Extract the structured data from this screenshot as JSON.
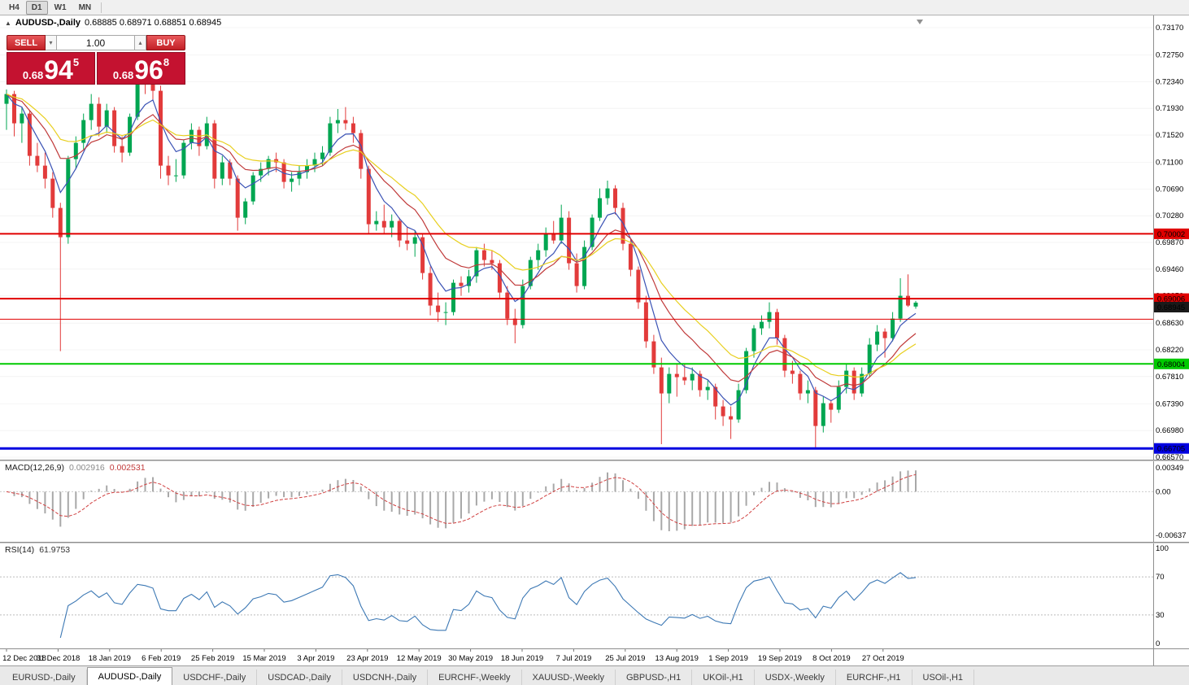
{
  "toolbar": {
    "timeframes": [
      "H4",
      "D1",
      "W1",
      "MN"
    ],
    "active": "D1"
  },
  "chart_header": {
    "collapse_icon": "▲",
    "title": "AUDUSD-,Daily",
    "ohlc": "0.68885 0.68971 0.68851 0.68945"
  },
  "one_click": {
    "sell_label": "SELL",
    "buy_label": "BUY",
    "volume": "1.00",
    "decrease_icon": "▾",
    "increase_icon": "▴",
    "sell_price": {
      "prefix": "0.68",
      "big": "94",
      "sup": "5"
    },
    "buy_price": {
      "prefix": "0.68",
      "big": "96",
      "sup": "8"
    }
  },
  "chart_data": {
    "type": "candlestick",
    "symbol": "AUDUSD-",
    "timeframe": "Daily",
    "main": {
      "price_top": 0.7317,
      "price_bottom": 0.6657,
      "y_ticks": [
        0.7317,
        0.7275,
        0.7234,
        0.7193,
        0.7152,
        0.711,
        0.7069,
        0.7028,
        0.6987,
        0.6946,
        0.6905,
        0.6863,
        0.6822,
        0.6781,
        0.6739,
        0.6698,
        0.6657
      ],
      "x_labels": [
        "12 Dec 2018",
        "31 Dec 2018",
        "18 Jan 2019",
        "6 Feb 2019",
        "25 Feb 2019",
        "15 Mar 2019",
        "3 Apr 2019",
        "23 Apr 2019",
        "12 May 2019",
        "30 May 2019",
        "18 Jun 2019",
        "7 Jul 2019",
        "25 Jul 2019",
        "13 Aug 2019",
        "1 Sep 2019",
        "19 Sep 2019",
        "8 Oct 2019",
        "27 Oct 2019"
      ],
      "up_color": "#00a651",
      "down_color": "#e23b3b",
      "ma_lines": [
        {
          "name": "fast",
          "color": "#3b53b5",
          "period": 5
        },
        {
          "name": "medium",
          "color": "#c03a3a",
          "period": 11
        },
        {
          "name": "slow",
          "color": "#e8cf1e",
          "period": 18
        }
      ],
      "h_lines": [
        {
          "price": 0.70002,
          "color": "#e00000",
          "width": 2,
          "label": "0.70002"
        },
        {
          "price": 0.69006,
          "color": "#e00000",
          "width": 2,
          "label": "0.69006"
        },
        {
          "price": 0.6869,
          "color": "#e00000",
          "width": 1,
          "label": ""
        },
        {
          "price": 0.68004,
          "color": "#00ca00",
          "width": 2,
          "label": "0.68004"
        },
        {
          "price": 0.66705,
          "color": "#0000e0",
          "width": 3,
          "label": "0.66705"
        }
      ],
      "bid": {
        "price": 0.68945,
        "label": "0.68945",
        "color": "#1a1a1a"
      },
      "candles": [
        [
          0.72,
          0.7222,
          0.716,
          0.7215
        ],
        [
          0.7215,
          0.722,
          0.715,
          0.717
        ],
        [
          0.717,
          0.7195,
          0.714,
          0.7185
        ],
        [
          0.7185,
          0.719,
          0.7105,
          0.712
        ],
        [
          0.712,
          0.714,
          0.7095,
          0.7105
        ],
        [
          0.7105,
          0.7125,
          0.707,
          0.7085
        ],
        [
          0.7085,
          0.7095,
          0.7025,
          0.704
        ],
        [
          0.704,
          0.7048,
          0.682,
          0.6995
        ],
        [
          0.6995,
          0.712,
          0.6985,
          0.7115
        ],
        [
          0.7115,
          0.715,
          0.71,
          0.714
        ],
        [
          0.714,
          0.7185,
          0.713,
          0.7175
        ],
        [
          0.7175,
          0.7215,
          0.716,
          0.72
        ],
        [
          0.72,
          0.721,
          0.715,
          0.7165
        ],
        [
          0.7165,
          0.72,
          0.7155,
          0.719
        ],
        [
          0.719,
          0.7195,
          0.7125,
          0.7135
        ],
        [
          0.7135,
          0.715,
          0.711,
          0.7125
        ],
        [
          0.7125,
          0.7185,
          0.712,
          0.718
        ],
        [
          0.718,
          0.7245,
          0.7175,
          0.7235
        ],
        [
          0.7235,
          0.725,
          0.7215,
          0.723
        ],
        [
          0.723,
          0.724,
          0.7205,
          0.722
        ],
        [
          0.722,
          0.7228,
          0.7085,
          0.7105
        ],
        [
          0.7105,
          0.712,
          0.7075,
          0.709
        ],
        [
          0.709,
          0.7115,
          0.708,
          0.709
        ],
        [
          0.709,
          0.7145,
          0.7085,
          0.714
        ],
        [
          0.714,
          0.717,
          0.713,
          0.716
        ],
        [
          0.716,
          0.7165,
          0.712,
          0.7135
        ],
        [
          0.7135,
          0.718,
          0.713,
          0.717
        ],
        [
          0.717,
          0.7175,
          0.707,
          0.7085
        ],
        [
          0.7085,
          0.712,
          0.7075,
          0.711
        ],
        [
          0.711,
          0.7115,
          0.7075,
          0.7085
        ],
        [
          0.7085,
          0.709,
          0.7005,
          0.7025
        ],
        [
          0.7025,
          0.7055,
          0.7015,
          0.705
        ],
        [
          0.705,
          0.7095,
          0.7045,
          0.709
        ],
        [
          0.709,
          0.711,
          0.708,
          0.71
        ],
        [
          0.71,
          0.712,
          0.709,
          0.7115
        ],
        [
          0.7115,
          0.7125,
          0.7095,
          0.711
        ],
        [
          0.711,
          0.7115,
          0.707,
          0.708
        ],
        [
          0.708,
          0.7095,
          0.7065,
          0.7085
        ],
        [
          0.7085,
          0.7105,
          0.7075,
          0.7095
        ],
        [
          0.7095,
          0.7115,
          0.7085,
          0.7105
        ],
        [
          0.7105,
          0.7125,
          0.7095,
          0.7115
        ],
        [
          0.7115,
          0.7135,
          0.7105,
          0.7125
        ],
        [
          0.7125,
          0.718,
          0.712,
          0.717
        ],
        [
          0.717,
          0.7192,
          0.7155,
          0.7175
        ],
        [
          0.7175,
          0.7195,
          0.716,
          0.717
        ],
        [
          0.717,
          0.718,
          0.714,
          0.7155
        ],
        [
          0.7155,
          0.716,
          0.7085,
          0.71
        ],
        [
          0.71,
          0.7105,
          0.7,
          0.7015
        ],
        [
          0.7015,
          0.7035,
          0.7005,
          0.702
        ],
        [
          0.702,
          0.7045,
          0.7,
          0.701
        ],
        [
          0.701,
          0.703,
          0.6995,
          0.702
        ],
        [
          0.702,
          0.7025,
          0.698,
          0.699
        ],
        [
          0.699,
          0.701,
          0.6975,
          0.6985
        ],
        [
          0.6985,
          0.7005,
          0.6965,
          0.6995
        ],
        [
          0.6995,
          0.7,
          0.693,
          0.694
        ],
        [
          0.694,
          0.695,
          0.6875,
          0.689
        ],
        [
          0.689,
          0.691,
          0.6865,
          0.688
        ],
        [
          0.688,
          0.6895,
          0.686,
          0.688
        ],
        [
          0.688,
          0.693,
          0.6875,
          0.6925
        ],
        [
          0.6925,
          0.6935,
          0.6905,
          0.692
        ],
        [
          0.692,
          0.6945,
          0.691,
          0.6935
        ],
        [
          0.6935,
          0.698,
          0.6925,
          0.6975
        ],
        [
          0.6975,
          0.6985,
          0.695,
          0.696
        ],
        [
          0.696,
          0.6975,
          0.6945,
          0.6955
        ],
        [
          0.6955,
          0.696,
          0.69,
          0.691
        ],
        [
          0.691,
          0.692,
          0.686,
          0.687
        ],
        [
          0.687,
          0.6885,
          0.6832,
          0.686
        ],
        [
          0.686,
          0.693,
          0.6855,
          0.692
        ],
        [
          0.692,
          0.6965,
          0.6915,
          0.696
        ],
        [
          0.696,
          0.6985,
          0.6945,
          0.6975
        ],
        [
          0.6975,
          0.701,
          0.6965,
          0.7
        ],
        [
          0.7,
          0.702,
          0.6985,
          0.699
        ],
        [
          0.699,
          0.7045,
          0.6985,
          0.7025
        ],
        [
          0.7025,
          0.7035,
          0.6945,
          0.6955
        ],
        [
          0.6955,
          0.697,
          0.691,
          0.692
        ],
        [
          0.692,
          0.699,
          0.6915,
          0.698
        ],
        [
          0.698,
          0.703,
          0.6975,
          0.7025
        ],
        [
          0.7025,
          0.707,
          0.702,
          0.7055
        ],
        [
          0.7055,
          0.7082,
          0.7045,
          0.707
        ],
        [
          0.707,
          0.7075,
          0.703,
          0.704
        ],
        [
          0.704,
          0.7048,
          0.6975,
          0.6985
        ],
        [
          0.6985,
          0.6992,
          0.6935,
          0.6945
        ],
        [
          0.6945,
          0.695,
          0.6885,
          0.6895
        ],
        [
          0.6895,
          0.6905,
          0.6825,
          0.6835
        ],
        [
          0.6835,
          0.6845,
          0.6785,
          0.6795
        ],
        [
          0.6795,
          0.681,
          0.6677,
          0.6755
        ],
        [
          0.6755,
          0.6795,
          0.674,
          0.6785
        ],
        [
          0.6785,
          0.68,
          0.675,
          0.678
        ],
        [
          0.678,
          0.68,
          0.6768,
          0.6775
        ],
        [
          0.6775,
          0.6795,
          0.676,
          0.6785
        ],
        [
          0.6785,
          0.679,
          0.675,
          0.676
        ],
        [
          0.676,
          0.6775,
          0.6745,
          0.6765
        ],
        [
          0.6765,
          0.677,
          0.6715,
          0.6735
        ],
        [
          0.6735,
          0.6745,
          0.6705,
          0.672
        ],
        [
          0.672,
          0.6735,
          0.6685,
          0.6715
        ],
        [
          0.6715,
          0.677,
          0.671,
          0.676
        ],
        [
          0.676,
          0.6825,
          0.6755,
          0.682
        ],
        [
          0.682,
          0.686,
          0.681,
          0.6855
        ],
        [
          0.6855,
          0.6875,
          0.6845,
          0.6865
        ],
        [
          0.6865,
          0.6895,
          0.6855,
          0.688
        ],
        [
          0.688,
          0.6885,
          0.683,
          0.684
        ],
        [
          0.684,
          0.6845,
          0.678,
          0.679
        ],
        [
          0.679,
          0.6805,
          0.677,
          0.6785
        ],
        [
          0.6785,
          0.679,
          0.6745,
          0.6755
        ],
        [
          0.6755,
          0.6775,
          0.674,
          0.676
        ],
        [
          0.676,
          0.6765,
          0.667,
          0.6705
        ],
        [
          0.6705,
          0.675,
          0.6695,
          0.674
        ],
        [
          0.674,
          0.6745,
          0.671,
          0.673
        ],
        [
          0.673,
          0.6775,
          0.6725,
          0.6765
        ],
        [
          0.6765,
          0.68,
          0.6755,
          0.679
        ],
        [
          0.679,
          0.6795,
          0.6745,
          0.6755
        ],
        [
          0.6755,
          0.6795,
          0.675,
          0.6785
        ],
        [
          0.6785,
          0.684,
          0.678,
          0.683
        ],
        [
          0.683,
          0.686,
          0.682,
          0.685
        ],
        [
          0.685,
          0.6855,
          0.681,
          0.684
        ],
        [
          0.684,
          0.688,
          0.6835,
          0.687
        ],
        [
          0.687,
          0.6932,
          0.6865,
          0.6905
        ],
        [
          0.6905,
          0.6938,
          0.6888,
          0.689
        ],
        [
          0.68885,
          0.68971,
          0.68851,
          0.68945
        ]
      ]
    },
    "macd": {
      "label": "MACD(12,26,9)",
      "value_main": "0.002916",
      "value_signal": "0.002531",
      "axis_top": 0.00349,
      "axis_bottom": -0.00637,
      "axis_labels": [
        "0.00349",
        "0.00",
        "-0.00637"
      ],
      "bar_color": "#a8a8a8",
      "signal_color": "#d04040"
    },
    "rsi": {
      "label": "RSI(14)",
      "value": "61.9753",
      "levels": [
        100,
        70,
        30,
        0
      ],
      "line_color": "#3c78b4"
    }
  },
  "tabs": [
    {
      "label": "EURUSD-,Daily",
      "active": false
    },
    {
      "label": "AUDUSD-,Daily",
      "active": true
    },
    {
      "label": "USDCHF-,Daily",
      "active": false
    },
    {
      "label": "USDCAD-,Daily",
      "active": false
    },
    {
      "label": "USDCNH-,Daily",
      "active": false
    },
    {
      "label": "EURCHF-,Weekly",
      "active": false
    },
    {
      "label": "XAUUSD-,Weekly",
      "active": false
    },
    {
      "label": "GBPUSD-,H1",
      "active": false
    },
    {
      "label": "UKOil-,H1",
      "active": false
    },
    {
      "label": "USDX-,Weekly",
      "active": false
    },
    {
      "label": "EURCHF-,H1",
      "active": false
    },
    {
      "label": "USOil-,H1",
      "active": false
    }
  ]
}
